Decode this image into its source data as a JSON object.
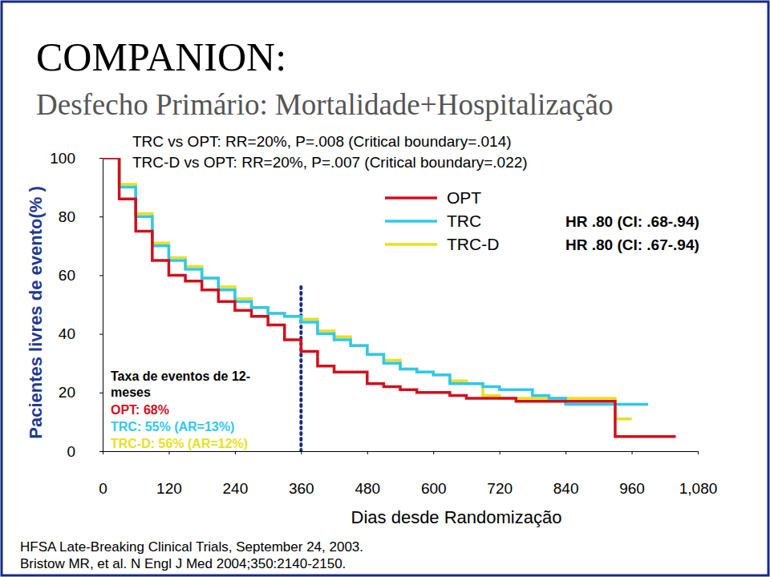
{
  "chart_data": {
    "type": "line",
    "title": "COMPANION:",
    "subtitle": "Desfecho Primário: Mortalidade+Hospitalização",
    "x_label": "Dias desde Randomização",
    "y_label": "Pacientes livres de evento(% )",
    "annotations": [
      "TRC vs OPT: RR=20%, P=.008 (Critical boundary=.014)",
      "TRC-D vs OPT: RR=20%, P=.007 (Critical boundary=.022)"
    ],
    "event_rate_box": {
      "title": [
        "Taxa de eventos de 12-",
        "meses"
      ],
      "rows": [
        {
          "text": "OPT: 68%",
          "color": "#d0101e"
        },
        {
          "text": "TRC: 55% (AR=13%)",
          "color": "#2fc8f0"
        },
        {
          "text": "TRC-D: 56% (AR=12%)",
          "color": "#e8e020"
        }
      ]
    },
    "reference_x": 360,
    "source": [
      "HFSA Late-Breaking Clinical Trials, September 24, 2003.",
      "Bristow MR, et al. N Engl J Med 2004;350:2140-2150."
    ],
    "x": [
      0,
      30,
      60,
      90,
      120,
      150,
      180,
      210,
      240,
      270,
      300,
      330,
      360,
      390,
      420,
      450,
      480,
      510,
      540,
      570,
      600,
      630,
      660,
      690,
      720,
      750,
      780,
      810,
      840,
      870,
      900,
      930,
      960,
      990,
      1020,
      1040
    ],
    "series": [
      {
        "name": "OPT",
        "color": "#d0101e",
        "line_style": "step",
        "values": [
          100,
          86,
          75,
          65,
          60,
          58,
          55,
          51,
          48,
          46,
          43,
          38,
          34,
          29,
          27,
          27,
          23,
          22,
          21,
          20,
          20,
          19,
          18,
          18,
          18,
          17,
          17,
          17,
          17,
          17,
          17,
          5,
          5,
          5,
          5,
          5
        ]
      },
      {
        "name": "TRC",
        "color": "#2fc8f0",
        "line_style": "step",
        "hr_label": "HR .80 (CI: .68-.94)",
        "values": [
          100,
          90,
          80,
          70,
          65,
          62,
          59,
          55,
          51,
          49,
          47,
          46,
          44,
          40,
          38,
          36,
          33,
          30,
          28,
          27,
          26,
          23,
          23,
          22,
          21,
          21,
          19,
          18,
          16,
          16,
          16,
          16,
          16,
          16,
          null,
          null
        ]
      },
      {
        "name": "TRC-D",
        "color": "#e8e020",
        "line_style": "step",
        "hr_label": "HR .80 (CI: .67-.94)",
        "values": [
          100,
          91,
          81,
          71,
          66,
          63,
          59,
          56,
          52,
          49,
          47,
          46,
          45,
          41,
          39,
          36,
          33,
          31,
          28,
          27,
          26,
          24,
          23,
          19,
          18,
          18,
          18,
          18,
          18,
          18,
          18,
          11,
          11,
          null,
          null,
          null
        ]
      }
    ],
    "xlim": [
      0,
      1080
    ],
    "ylim": [
      0,
      100
    ],
    "xticks": [
      0,
      120,
      240,
      360,
      480,
      600,
      720,
      840,
      960,
      {
        "value": 1080,
        "label": "1,080"
      }
    ],
    "yticks": [
      0,
      20,
      40,
      60,
      80,
      100
    ],
    "grid": false,
    "legend": "top-right"
  }
}
